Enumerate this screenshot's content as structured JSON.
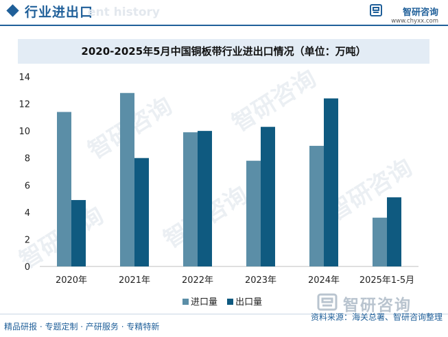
{
  "header": {
    "title": "行业进出口",
    "watermark": "ent history",
    "brand_name": "智研咨询",
    "brand_url": "www.chyxx.com"
  },
  "chart_data": {
    "type": "bar",
    "title": "2020-2025年5月中国铜板带行业进出口情况（单位：万吨）",
    "categories": [
      "2020年",
      "2021年",
      "2022年",
      "2023年",
      "2024年",
      "2025年1-5月"
    ],
    "series": [
      {
        "name": "进口量",
        "color": "#5b8ea7",
        "values": [
          11.4,
          12.8,
          9.9,
          7.8,
          8.9,
          3.6
        ]
      },
      {
        "name": "出口量",
        "color": "#0f5a80",
        "values": [
          4.9,
          8.0,
          10.0,
          10.3,
          12.4,
          5.1
        ]
      }
    ],
    "ylim": [
      0,
      14
    ],
    "yticks": [
      0,
      2,
      4,
      6,
      8,
      10,
      12,
      14
    ],
    "grid": false,
    "legend": "bottom"
  },
  "watermarks": {
    "brand": "智研咨询",
    "marks": [
      "智研咨询",
      "智研咨询",
      "智研咨询",
      "智研咨询",
      "智研咨询"
    ]
  },
  "footer": {
    "left": "精品研报 · 专题定制 · 产研服务 · 专精特新",
    "right": "资料来源：海关总署、智研咨询整理"
  },
  "colors": {
    "brand": "#1f5f99",
    "import": "#5b8ea7",
    "export": "#0f5a80"
  }
}
